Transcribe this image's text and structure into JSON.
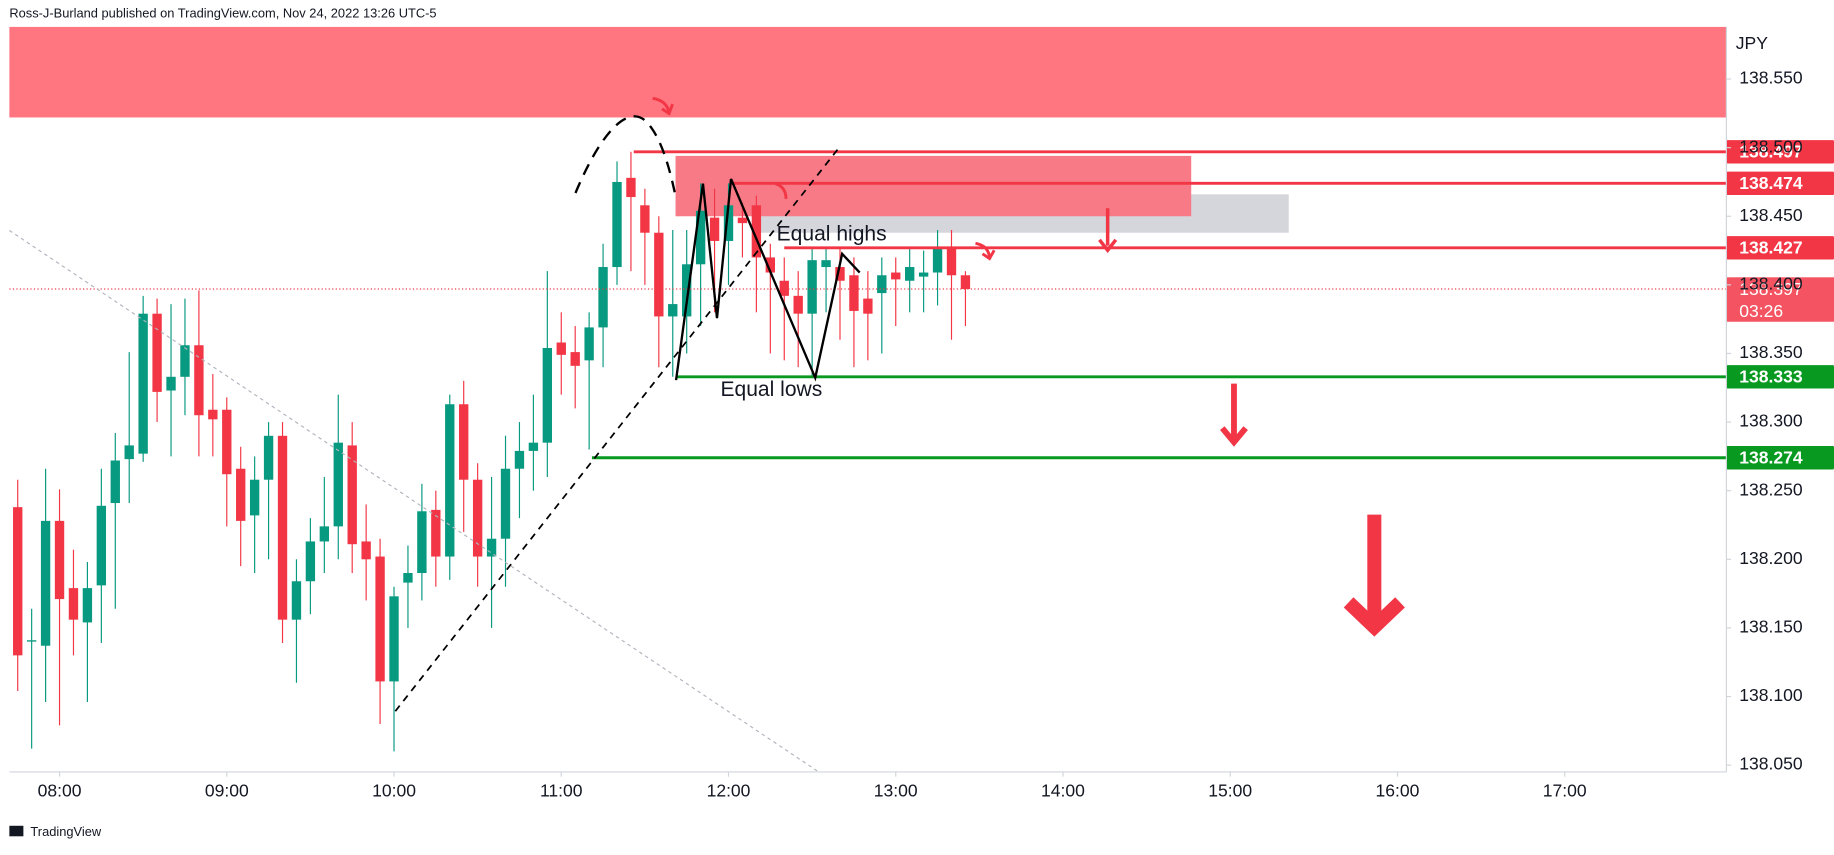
{
  "header": "Ross-J-Burland published on TradingView.com, Nov 24, 2022 13:26 UTC-5",
  "footer": "TradingView",
  "chart_data": {
    "type": "candlestick",
    "currency": "JPY",
    "x": [
      465,
      470,
      475,
      480,
      485,
      490,
      495,
      500,
      505,
      510,
      515,
      520,
      525,
      530,
      535,
      540,
      545,
      550,
      555,
      560,
      565,
      570,
      575,
      580,
      585,
      590,
      595,
      600,
      605,
      610,
      615,
      620,
      625,
      630,
      635,
      640,
      645,
      650,
      655,
      660,
      665,
      670,
      675,
      680,
      685,
      690,
      695,
      700,
      705,
      710,
      715,
      720,
      725,
      730,
      735,
      740,
      745,
      750,
      755,
      760,
      765,
      770,
      775,
      780,
      785,
      790,
      795,
      800,
      805
    ],
    "open": [
      138.238,
      138.14,
      138.137,
      138.228,
      138.179,
      138.154,
      138.181,
      138.241,
      138.273,
      138.277,
      138.379,
      138.323,
      138.333,
      138.356,
      138.309,
      138.309,
      138.266,
      138.232,
      138.258,
      138.29,
      138.156,
      138.184,
      138.213,
      138.224,
      138.283,
      138.213,
      138.202,
      138.111,
      138.183,
      138.19,
      138.236,
      138.202,
      138.313,
      138.258,
      138.202,
      138.215,
      138.266,
      138.279,
      138.285,
      138.358,
      138.351,
      138.345,
      138.369,
      138.413,
      138.478,
      138.458,
      138.438,
      138.377,
      138.377,
      138.415,
      138.449,
      138.432,
      138.449,
      138.458,
      138.42,
      138.403,
      138.392,
      138.379,
      138.413,
      138.413,
      138.407,
      138.39,
      138.394,
      138.409,
      138.403,
      138.406,
      138.409,
      138.427,
      138.407
    ],
    "high": [
      138.258,
      138.164,
      138.266,
      138.251,
      138.207,
      138.198,
      138.266,
      138.292,
      138.351,
      138.392,
      138.39,
      138.386,
      138.39,
      138.396,
      138.335,
      138.318,
      138.282,
      138.275,
      138.3,
      138.3,
      138.2,
      138.23,
      138.26,
      138.32,
      138.3,
      138.24,
      138.215,
      138.18,
      138.21,
      138.255,
      138.25,
      138.32,
      138.33,
      138.27,
      138.26,
      138.29,
      138.3,
      138.32,
      138.41,
      138.38,
      138.37,
      138.38,
      138.43,
      138.49,
      138.497,
      138.47,
      138.45,
      138.44,
      138.44,
      138.474,
      138.47,
      138.474,
      138.46,
      138.465,
      138.43,
      138.42,
      138.41,
      138.427,
      138.427,
      138.427,
      138.42,
      138.41,
      138.42,
      138.42,
      138.427,
      138.425,
      138.44,
      138.44,
      138.41
    ],
    "low": [
      138.104,
      138.062,
      138.096,
      138.079,
      138.13,
      138.096,
      138.139,
      138.164,
      138.241,
      138.271,
      138.3,
      138.275,
      138.305,
      138.275,
      138.275,
      138.224,
      138.195,
      138.19,
      138.2,
      138.139,
      138.11,
      138.16,
      138.19,
      138.2,
      138.19,
      138.17,
      138.08,
      138.06,
      138.15,
      138.17,
      138.18,
      138.185,
      138.22,
      138.18,
      138.15,
      138.18,
      138.23,
      138.25,
      138.26,
      138.32,
      138.31,
      138.28,
      138.34,
      138.4,
      138.41,
      138.4,
      138.34,
      138.333,
      138.35,
      138.37,
      138.38,
      138.4,
      138.42,
      138.38,
      138.35,
      138.345,
      138.34,
      138.333,
      138.38,
      138.36,
      138.34,
      138.345,
      138.35,
      138.37,
      138.38,
      138.38,
      138.385,
      138.36,
      138.37
    ],
    "close": [
      138.13,
      138.141,
      138.228,
      138.171,
      138.156,
      138.179,
      138.239,
      138.272,
      138.283,
      138.379,
      138.322,
      138.333,
      138.356,
      138.305,
      138.302,
      138.262,
      138.228,
      138.258,
      138.29,
      138.156,
      138.184,
      138.213,
      138.224,
      138.285,
      138.211,
      138.2,
      138.111,
      138.173,
      138.19,
      138.235,
      138.202,
      138.313,
      138.258,
      138.202,
      138.215,
      138.266,
      138.279,
      138.285,
      138.354,
      138.349,
      138.341,
      138.369,
      138.413,
      138.475,
      138.464,
      138.438,
      138.377,
      138.386,
      138.415,
      138.454,
      138.432,
      138.458,
      138.445,
      138.42,
      138.409,
      138.392,
      138.379,
      138.418,
      138.418,
      138.403,
      138.381,
      138.379,
      138.407,
      138.404,
      138.413,
      138.409,
      138.427,
      138.407,
      138.397
    ],
    "up_color": "#089981",
    "down_color": "#f23645",
    "xlim": [
      462,
      1078
    ],
    "xticks": [
      {
        "value": 480,
        "label": "08:00"
      },
      {
        "value": 540,
        "label": "09:00"
      },
      {
        "value": 600,
        "label": "10:00"
      },
      {
        "value": 660,
        "label": "11:00"
      },
      {
        "value": 720,
        "label": "12:00"
      },
      {
        "value": 780,
        "label": "13:00"
      },
      {
        "value": 840,
        "label": "14:00"
      },
      {
        "value": 900,
        "label": "15:00"
      },
      {
        "value": 960,
        "label": "16:00"
      },
      {
        "value": 1020,
        "label": "17:00"
      }
    ],
    "ylim": [
      138.045,
      138.588
    ],
    "yticks": [
      {
        "value": 138.05,
        "label": "138.050"
      },
      {
        "value": 138.1,
        "label": "138.100"
      },
      {
        "value": 138.15,
        "label": "138.150"
      },
      {
        "value": 138.2,
        "label": "138.200"
      },
      {
        "value": 138.25,
        "label": "138.250"
      },
      {
        "value": 138.3,
        "label": "138.300"
      },
      {
        "value": 138.35,
        "label": "138.350"
      },
      {
        "value": 138.4,
        "label": "138.400"
      },
      {
        "value": 138.45,
        "label": "138.450"
      },
      {
        "value": 138.5,
        "label": "138.500"
      },
      {
        "value": 138.55,
        "label": "138.550"
      }
    ],
    "zones": [
      {
        "from": 138.522,
        "to": 138.588,
        "color": "#ff7580"
      },
      {
        "from": 138.438,
        "to": 138.466,
        "start": 731,
        "end": 921,
        "color": "#d5d6dc"
      },
      {
        "from": 138.45,
        "to": 138.494,
        "start": 701,
        "end": 886,
        "color": "#f77a86"
      }
    ],
    "levels": [
      {
        "value": 138.497,
        "start": 686,
        "color": "#f23645"
      },
      {
        "value": 138.474,
        "start": 721,
        "color": "#f23645"
      },
      {
        "value": 138.427,
        "start": 740,
        "color": "#f23645"
      },
      {
        "value": 138.333,
        "start": 701,
        "color": "#089920"
      },
      {
        "value": 138.274,
        "start": 671,
        "color": "#089920"
      }
    ],
    "current": {
      "value": 138.397,
      "countdown": "03:26",
      "color": "#f23645"
    },
    "annotations": [
      "Equal highs",
      "Equal lows"
    ]
  }
}
